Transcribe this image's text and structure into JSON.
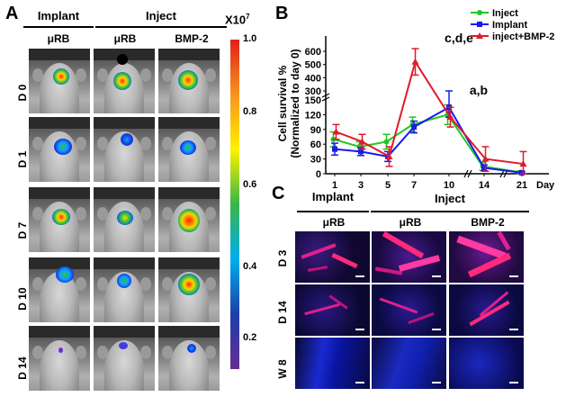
{
  "panels": {
    "a": "A",
    "b": "B",
    "c": "C"
  },
  "panel_a": {
    "group_implant": "Implant",
    "group_inject": "Inject",
    "columns": [
      "μRB",
      "μRB",
      "BMP-2"
    ],
    "rows": [
      "D 0",
      "D 1",
      "D 7",
      "D 10",
      "D 14"
    ],
    "colorbar": {
      "multiplier": "X10",
      "exponent": "7",
      "ticks": [
        "1.0",
        "0.8",
        "0.6",
        "0.4",
        "0.2"
      ],
      "colors": [
        "#e0201c",
        "#f7941d",
        "#fff200",
        "#39b54a",
        "#00aeef",
        "#1c3faa",
        "#662d91"
      ]
    }
  },
  "chart_data": {
    "type": "line",
    "title": "",
    "ylabel_line1": "Cell survival %",
    "ylabel_line2": "(Normalized to day 0)",
    "xlabel": "Day",
    "categories": [
      "1",
      "3",
      "5",
      "7",
      "10",
      "14",
      "21"
    ],
    "ylim": [
      0,
      650
    ],
    "yticks": [
      "0",
      "30",
      "60",
      "90",
      "120",
      "150",
      "300",
      "400",
      "500",
      "600"
    ],
    "series": [
      {
        "name": "Inject",
        "color": "#22c722",
        "marker": "circle",
        "values": [
          70,
          55,
          65,
          100,
          120,
          15,
          3
        ],
        "errors": [
          15,
          10,
          15,
          15,
          20,
          8,
          3
        ]
      },
      {
        "name": "Implant",
        "color": "#1a1aee",
        "marker": "square",
        "values": [
          50,
          45,
          35,
          95,
          135,
          12,
          2
        ],
        "errors": [
          12,
          8,
          10,
          12,
          20,
          6,
          2
        ]
      },
      {
        "name": "inject+BMP-2",
        "color": "#e01a2a",
        "marker": "triangle",
        "values": [
          85,
          65,
          35,
          520,
          115,
          30,
          20
        ],
        "errors": [
          15,
          15,
          20,
          100,
          20,
          25,
          25
        ]
      }
    ],
    "annotations": [
      "c,d,e",
      "a,b"
    ]
  },
  "panel_c": {
    "group_implant": "Implant",
    "group_inject": "Inject",
    "columns": [
      "μRB",
      "μRB",
      "BMP-2"
    ],
    "rows": [
      "D 3",
      "D 14",
      "W 8"
    ]
  }
}
